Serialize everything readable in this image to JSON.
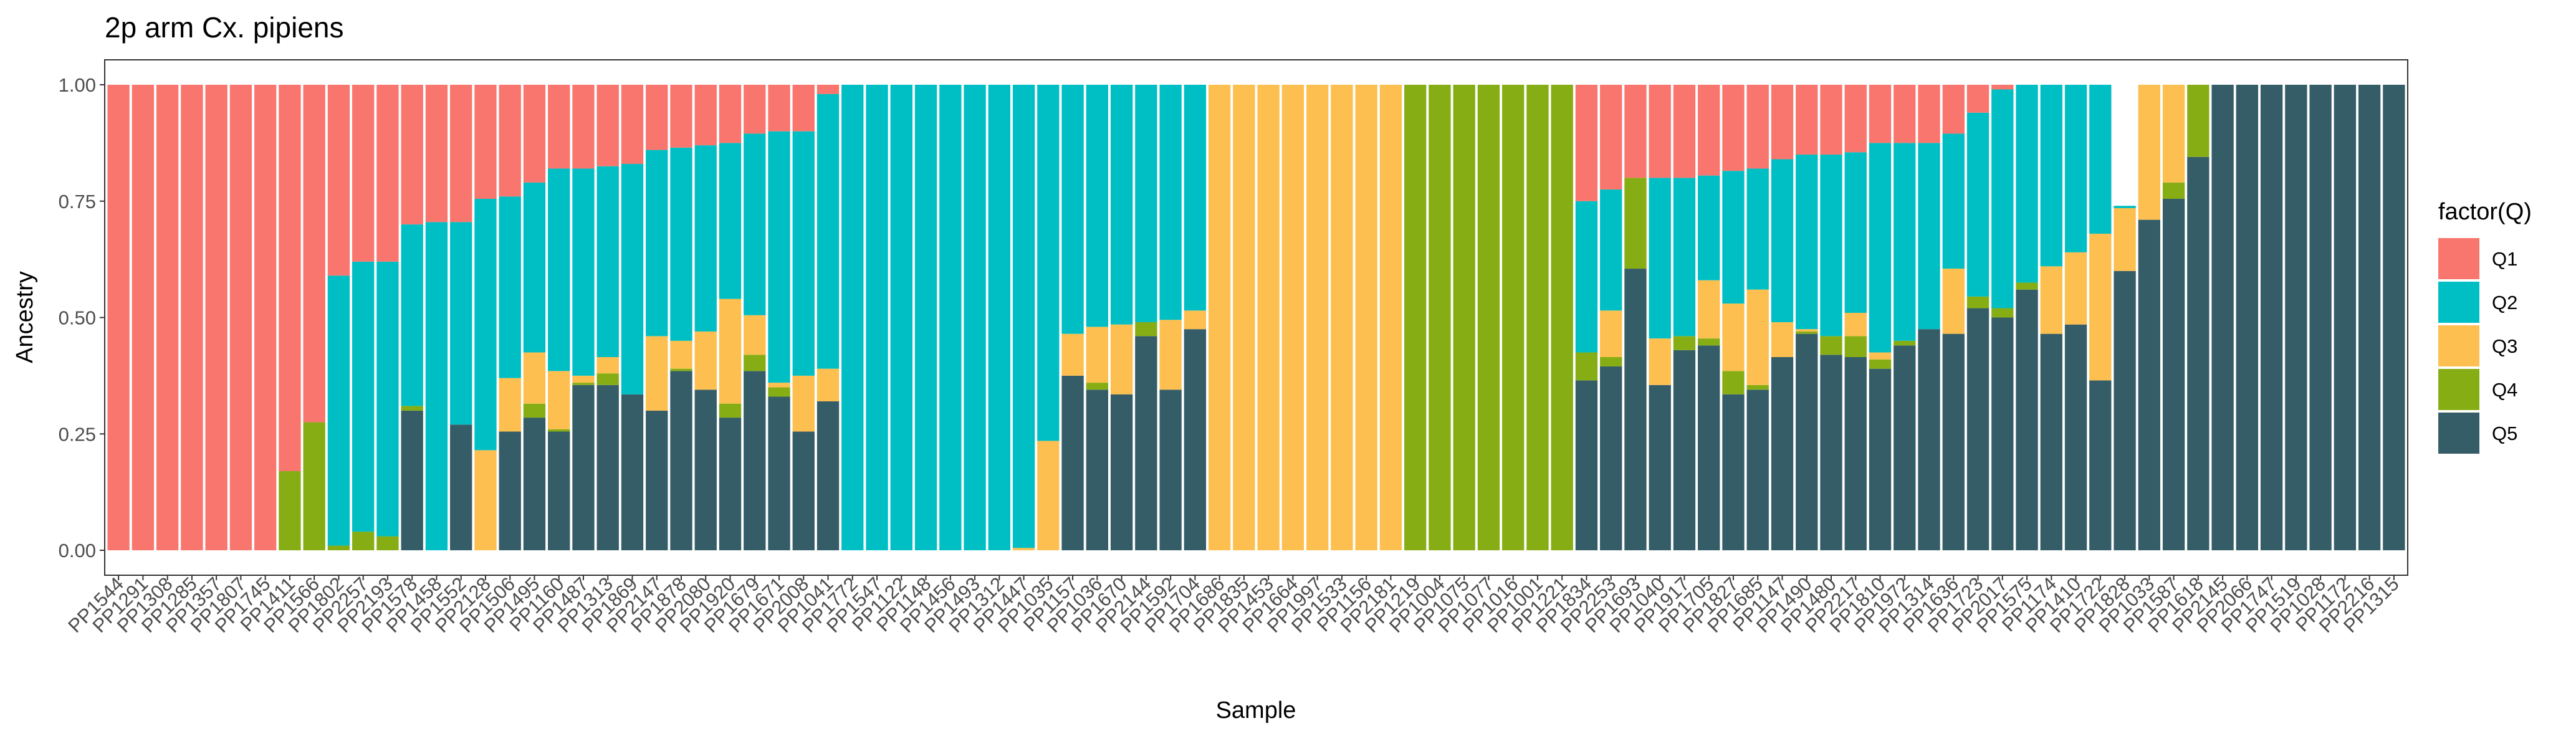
{
  "chart_data": {
    "type": "bar",
    "stacked": true,
    "title": "2p arm Cx. pipiens",
    "xlabel": "Sample",
    "ylabel": "Ancestry",
    "ylim": [
      0,
      1
    ],
    "yticks": [
      "0.00",
      "0.25",
      "0.50",
      "0.75",
      "1.00"
    ],
    "legend_title": "factor(Q)",
    "legend_position": "right",
    "stack_order_bottom_to_top": [
      "Q5",
      "Q4",
      "Q3",
      "Q2",
      "Q1"
    ],
    "colors": {
      "Q1": "#F8766D",
      "Q2": "#00BFC4",
      "Q3": "#FDBF4F",
      "Q4": "#86AE14",
      "Q5": "#355D68"
    },
    "categories": [
      "PP1544",
      "PP1291",
      "PP1308",
      "PP1285",
      "PP1357",
      "PP1807",
      "PP1745",
      "PP1411",
      "PP1566",
      "PP1802",
      "PP2257",
      "PP2193",
      "PP1578",
      "PP1458",
      "PP1552",
      "PP2128",
      "PP1506",
      "PP1495",
      "PP1160",
      "PP1487",
      "PP1313",
      "PP1869",
      "PP2147",
      "PP1878",
      "PP2080",
      "PP1920",
      "PP1679",
      "PP1671",
      "PP2008",
      "PP1041",
      "PP1772",
      "PP1547",
      "PP1122",
      "PP1148",
      "PP1456",
      "PP1493",
      "PP1312",
      "PP1447",
      "PP1035",
      "PP1157",
      "PP1036",
      "PP1670",
      "PP2144",
      "PP1592",
      "PP1704",
      "PP1686",
      "PP1835",
      "PP1453",
      "PP1664",
      "PP1997",
      "PP1533",
      "PP1156",
      "PP2181",
      "PP1219",
      "PP1004",
      "PP1075",
      "PP1077",
      "PP1016",
      "PP1001",
      "PP1221",
      "PP1834",
      "PP2253",
      "PP1693",
      "PP1040",
      "PP1917",
      "PP1705",
      "PP1827",
      "PP1685",
      "PP1147",
      "PP1490",
      "PP1480",
      "PP2217",
      "PP1810",
      "PP1972",
      "PP1314",
      "PP1636",
      "PP1723",
      "PP2017",
      "PP1575",
      "PP1174",
      "PP1410",
      "PP1722",
      "PP1828",
      "PP1033",
      "PP1587",
      "PP1618",
      "PP2145",
      "PP2066",
      "PP1747",
      "PP1519",
      "PP1028",
      "PP1172",
      "PP2216",
      "PP1315"
    ],
    "series": [
      {
        "name": "Q5",
        "values": [
          0,
          0,
          0,
          0,
          0,
          0,
          0,
          0,
          0,
          0,
          0,
          0,
          0.3,
          0,
          0.27,
          0,
          0.255,
          0.285,
          0.255,
          0.355,
          0.355,
          0.335,
          0.3,
          0.385,
          0.345,
          0.285,
          0.385,
          0.33,
          0.255,
          0.32,
          0,
          0,
          0,
          0,
          0,
          0,
          0,
          0,
          0,
          0.375,
          0.345,
          0.335,
          0.46,
          0.345,
          0.475,
          0,
          0,
          0,
          0,
          0,
          0,
          0,
          0,
          0,
          0,
          0,
          0,
          0,
          0,
          0,
          0.365,
          0.395,
          0.605,
          0.355,
          0.43,
          0.44,
          0.335,
          0.345,
          0.415,
          0.465,
          0.42,
          0.415,
          0.39,
          0.44,
          0.475,
          0.465,
          0.52,
          0.5,
          0.56,
          0.465,
          0.485,
          0.365,
          0.6,
          0.71,
          0.755,
          0.845,
          1,
          1,
          1,
          1,
          1,
          1,
          1,
          1
        ]
      },
      {
        "name": "Q4",
        "values": [
          0,
          0,
          0,
          0,
          0,
          0,
          0,
          0.17,
          0.275,
          0.01,
          0.04,
          0.03,
          0.01,
          0,
          0,
          0,
          0,
          0.03,
          0.005,
          0.005,
          0.025,
          0,
          0,
          0.005,
          0,
          0.03,
          0.035,
          0.02,
          0,
          0,
          0,
          0,
          0,
          0,
          0,
          0,
          0,
          0,
          0,
          0,
          0.015,
          0,
          0.03,
          0,
          0,
          0,
          0,
          0,
          0,
          0,
          0,
          0,
          0,
          1,
          1,
          1,
          1,
          1,
          1,
          1,
          0.06,
          0.02,
          0.195,
          0,
          0.03,
          0.015,
          0.05,
          0.01,
          0,
          0.005,
          0.04,
          0.045,
          0.02,
          0.01,
          0,
          0,
          0.025,
          0.02,
          0.015,
          0,
          0,
          0,
          0,
          0,
          0.035,
          0.155,
          0,
          0,
          0,
          0,
          0,
          0,
          0,
          0
        ]
      },
      {
        "name": "Q3",
        "values": [
          0,
          0,
          0,
          0,
          0,
          0,
          0,
          0,
          0,
          0,
          0,
          0,
          0,
          0,
          0,
          0.215,
          0.115,
          0.11,
          0.125,
          0.015,
          0.035,
          0,
          0.16,
          0.06,
          0.125,
          0.225,
          0.085,
          0.01,
          0.12,
          0.07,
          0,
          0,
          0,
          0,
          0,
          0,
          0,
          0.005,
          0.235,
          0.09,
          0.12,
          0.15,
          0,
          0.15,
          0.04,
          1,
          1,
          1,
          1,
          1,
          1,
          1,
          1,
          0,
          0,
          0,
          0,
          0,
          0,
          0,
          0,
          0.1,
          0,
          0.1,
          0,
          0.125,
          0.145,
          0.205,
          0.075,
          0.005,
          0,
          0.05,
          0.015,
          0,
          0,
          0.14,
          0,
          0,
          0,
          0.145,
          0.155,
          0.315,
          0.135,
          0.29,
          0.21,
          0,
          0,
          0,
          0,
          0,
          0,
          0,
          0,
          0
        ]
      },
      {
        "name": "Q2",
        "values": [
          0,
          0,
          0,
          0,
          0,
          0,
          0,
          0,
          0,
          0.58,
          0.58,
          0.59,
          0.39,
          0.705,
          0.435,
          0.54,
          0.39,
          0.365,
          0.435,
          0.445,
          0.41,
          0.495,
          0.4,
          0.415,
          0.4,
          0.335,
          0.39,
          0.54,
          0.525,
          0.59,
          1,
          1,
          1,
          1,
          1,
          1,
          1,
          0.995,
          0.765,
          0.535,
          0.52,
          0.515,
          0.51,
          0.505,
          0.485,
          0,
          0,
          0,
          0,
          0,
          0,
          0,
          0,
          0,
          0,
          0,
          0,
          0,
          0,
          0,
          0.325,
          0.26,
          0,
          0.345,
          0.34,
          0.225,
          0.285,
          0.26,
          0.35,
          0.375,
          0.39,
          0.345,
          0.45,
          0.425,
          0.4,
          0.29,
          0.395,
          0.47,
          0.425,
          0.39,
          0.36,
          0.32,
          0.005,
          0,
          0,
          0,
          0,
          0,
          0,
          0,
          0,
          0,
          0,
          0
        ]
      },
      {
        "name": "Q1",
        "values": [
          1,
          1,
          1,
          1,
          1,
          1,
          1,
          0.83,
          0.725,
          0.41,
          0.38,
          0.38,
          0.3,
          0.295,
          0.295,
          0.245,
          0.24,
          0.21,
          0.18,
          0.18,
          0.175,
          0.17,
          0.14,
          0.135,
          0.13,
          0.125,
          0.105,
          0.1,
          0.1,
          0.02,
          0,
          0,
          0,
          0,
          0,
          0,
          0,
          0,
          0,
          0,
          0,
          0,
          0,
          0,
          0,
          0,
          0,
          0,
          0,
          0,
          0,
          0,
          0,
          0,
          0,
          0,
          0,
          0,
          0,
          0,
          0.25,
          0.225,
          0.2,
          0.2,
          0.2,
          0.195,
          0.185,
          0.18,
          0.16,
          0.15,
          0.15,
          0.145,
          0.125,
          0.125,
          0.125,
          0.105,
          0.06,
          0.01,
          0,
          0,
          0,
          0,
          0,
          0,
          0,
          0,
          0,
          0,
          0,
          0,
          0,
          0,
          0,
          0
        ]
      }
    ]
  }
}
